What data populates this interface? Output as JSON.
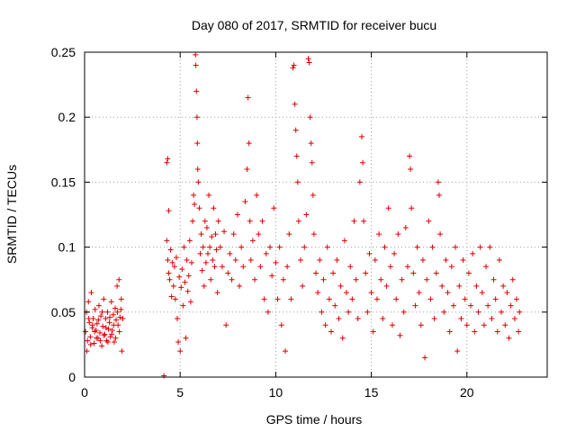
{
  "chart_data": {
    "type": "scatter",
    "title": "Day 080 of 2017, SRMTID for receiver bucu",
    "xlabel": "GPS time / hours",
    "ylabel": "SRMTID / TECUs",
    "xlim": [
      0,
      24.2
    ],
    "ylim": [
      0,
      0.25
    ],
    "x_ticks": [
      0,
      5,
      10,
      15,
      20
    ],
    "x_tick_labels": [
      "0",
      "5",
      "10",
      "15",
      "20"
    ],
    "y_ticks": [
      0,
      0.05,
      0.1,
      0.15,
      0.2,
      0.25
    ],
    "y_tick_labels": [
      "0",
      "0.05",
      "0.1",
      "0.15",
      "0.2",
      "0.25"
    ],
    "grid": true,
    "marker": "plus",
    "series": [
      {
        "name": "SRMTID",
        "color": "#e00000",
        "points": [
          [
            0.05,
            0.035
          ],
          [
            0.1,
            0.05
          ],
          [
            0.15,
            0.028
          ],
          [
            0.2,
            0.058
          ],
          [
            0.25,
            0.042
          ],
          [
            0.3,
            0.031
          ],
          [
            0.35,
            0.065
          ],
          [
            0.4,
            0.038
          ],
          [
            0.45,
            0.045
          ],
          [
            0.5,
            0.026
          ],
          [
            0.55,
            0.052
          ],
          [
            0.6,
            0.036
          ],
          [
            0.65,
            0.041
          ],
          [
            0.7,
            0.03
          ],
          [
            0.75,
            0.055
          ],
          [
            0.8,
            0.034
          ],
          [
            0.85,
            0.047
          ],
          [
            0.9,
            0.024
          ],
          [
            0.95,
            0.039
          ],
          [
            1.0,
            0.06
          ],
          [
            1.05,
            0.033
          ],
          [
            1.1,
            0.045
          ],
          [
            1.15,
            0.028
          ],
          [
            1.2,
            0.05
          ],
          [
            1.25,
            0.037
          ],
          [
            1.3,
            0.042
          ],
          [
            1.35,
            0.031
          ],
          [
            1.4,
            0.058
          ],
          [
            1.45,
            0.036
          ],
          [
            1.5,
            0.048
          ],
          [
            1.55,
            0.027
          ],
          [
            1.6,
            0.053
          ],
          [
            1.65,
            0.044
          ],
          [
            1.7,
            0.07
          ],
          [
            1.75,
            0.04
          ],
          [
            1.8,
            0.075
          ],
          [
            1.85,
            0.046
          ],
          [
            1.9,
            0.052
          ],
          [
            1.95,
            0.02
          ],
          [
            2.0,
            0.045
          ],
          [
            0.12,
            0.02
          ],
          [
            0.22,
            0.045
          ],
          [
            0.32,
            0.025
          ],
          [
            0.42,
            0.04
          ],
          [
            0.52,
            0.035
          ],
          [
            0.62,
            0.03
          ],
          [
            0.72,
            0.044
          ],
          [
            0.82,
            0.028
          ],
          [
            0.92,
            0.05
          ],
          [
            1.02,
            0.032
          ],
          [
            1.12,
            0.038
          ],
          [
            1.22,
            0.027
          ],
          [
            1.32,
            0.046
          ],
          [
            1.42,
            0.033
          ],
          [
            1.52,
            0.04
          ],
          [
            1.62,
            0.03
          ],
          [
            1.72,
            0.05
          ],
          [
            1.82,
            0.035
          ],
          [
            1.92,
            0.06
          ],
          [
            4.15,
            0.001
          ],
          [
            4.3,
            0.165
          ],
          [
            4.35,
            0.168
          ],
          [
            4.4,
            0.128
          ],
          [
            4.3,
            0.105
          ],
          [
            4.35,
            0.09
          ],
          [
            4.4,
            0.08
          ],
          [
            4.45,
            0.075
          ],
          [
            4.5,
            0.098
          ],
          [
            4.55,
            0.062
          ],
          [
            4.6,
            0.088
          ],
          [
            4.65,
            0.07
          ],
          [
            4.7,
            0.085
          ],
          [
            4.75,
            0.06
          ],
          [
            4.8,
            0.092
          ],
          [
            4.85,
            0.045
          ],
          [
            4.9,
            0.027
          ],
          [
            4.95,
            0.077
          ],
          [
            5.0,
            0.02
          ],
          [
            5.05,
            0.069
          ],
          [
            5.1,
            0.083
          ],
          [
            5.15,
            0.055
          ],
          [
            5.2,
            0.1
          ],
          [
            5.25,
            0.073
          ],
          [
            5.3,
            0.03
          ],
          [
            5.35,
            0.09
          ],
          [
            5.4,
            0.066
          ],
          [
            5.45,
            0.078
          ],
          [
            5.5,
            0.105
          ],
          [
            5.55,
            0.058
          ],
          [
            5.6,
            0.088
          ],
          [
            5.65,
            0.12
          ],
          [
            5.7,
            0.14
          ],
          [
            5.75,
            0.133
          ],
          [
            5.8,
            0.248
          ],
          [
            5.82,
            0.24
          ],
          [
            5.85,
            0.22
          ],
          [
            5.88,
            0.2
          ],
          [
            5.9,
            0.18
          ],
          [
            5.92,
            0.16
          ],
          [
            5.95,
            0.15
          ],
          [
            6.0,
            0.13
          ],
          [
            6.05,
            0.095
          ],
          [
            6.1,
            0.11
          ],
          [
            6.15,
            0.082
          ],
          [
            6.2,
            0.1
          ],
          [
            6.25,
            0.07
          ],
          [
            6.3,
            0.12
          ],
          [
            6.35,
            0.088
          ],
          [
            6.4,
            0.115
          ],
          [
            6.45,
            0.095
          ],
          [
            6.5,
            0.14
          ],
          [
            6.55,
            0.1
          ],
          [
            6.6,
            0.075
          ],
          [
            6.65,
            0.108
          ],
          [
            6.7,
            0.09
          ],
          [
            6.75,
            0.13
          ],
          [
            6.8,
            0.085
          ],
          [
            6.85,
            0.11
          ],
          [
            6.9,
            0.098
          ],
          [
            6.95,
            0.065
          ],
          [
            7.0,
            0.12
          ],
          [
            7.1,
            0.1
          ],
          [
            7.2,
            0.085
          ],
          [
            7.3,
            0.112
          ],
          [
            7.4,
            0.04
          ],
          [
            7.5,
            0.08
          ],
          [
            7.6,
            0.095
          ],
          [
            7.7,
            0.075
          ],
          [
            7.8,
            0.11
          ],
          [
            7.9,
            0.09
          ],
          [
            8.0,
            0.125
          ],
          [
            8.1,
            0.07
          ],
          [
            8.2,
            0.1
          ],
          [
            8.3,
            0.085
          ],
          [
            8.4,
            0.135
          ],
          [
            8.5,
            0.16
          ],
          [
            8.55,
            0.215
          ],
          [
            8.6,
            0.18
          ],
          [
            8.65,
            0.12
          ],
          [
            8.7,
            0.09
          ],
          [
            8.8,
            0.105
          ],
          [
            8.9,
            0.075
          ],
          [
            9.0,
            0.14
          ],
          [
            9.1,
            0.11
          ],
          [
            9.2,
            0.085
          ],
          [
            9.3,
            0.12
          ],
          [
            9.4,
            0.06
          ],
          [
            9.5,
            0.095
          ],
          [
            9.6,
            0.05
          ],
          [
            9.7,
            0.1
          ],
          [
            9.8,
            0.078
          ],
          [
            9.9,
            0.13
          ],
          [
            10.0,
            0.088
          ],
          [
            10.1,
            0.06
          ],
          [
            10.2,
            0.1
          ],
          [
            10.3,
            0.04
          ],
          [
            10.4,
            0.075
          ],
          [
            10.5,
            0.02
          ],
          [
            10.6,
            0.085
          ],
          [
            10.7,
            0.11
          ],
          [
            10.8,
            0.06
          ],
          [
            10.9,
            0.238
          ],
          [
            10.95,
            0.24
          ],
          [
            11.0,
            0.21
          ],
          [
            11.05,
            0.19
          ],
          [
            11.1,
            0.17
          ],
          [
            11.15,
            0.15
          ],
          [
            11.2,
            0.12
          ],
          [
            11.3,
            0.09
          ],
          [
            11.4,
            0.07
          ],
          [
            11.5,
            0.1
          ],
          [
            11.6,
            0.125
          ],
          [
            11.7,
            0.245
          ],
          [
            11.75,
            0.242
          ],
          [
            11.8,
            0.2
          ],
          [
            11.85,
            0.18
          ],
          [
            11.9,
            0.165
          ],
          [
            11.95,
            0.14
          ],
          [
            12.0,
            0.11
          ],
          [
            12.1,
            0.08
          ],
          [
            12.2,
            0.065
          ],
          [
            12.3,
            0.09
          ],
          [
            12.4,
            0.05
          ],
          [
            12.5,
            0.075
          ],
          [
            12.6,
            0.04
          ],
          [
            12.7,
            0.1
          ],
          [
            12.8,
            0.06
          ],
          [
            12.9,
            0.035
          ],
          [
            13.0,
            0.08
          ],
          [
            13.1,
            0.055
          ],
          [
            13.2,
            0.09
          ],
          [
            13.3,
            0.045
          ],
          [
            13.4,
            0.07
          ],
          [
            13.5,
            0.03
          ],
          [
            13.6,
            0.105
          ],
          [
            13.7,
            0.065
          ],
          [
            13.8,
            0.05
          ],
          [
            13.9,
            0.085
          ],
          [
            14.0,
            0.06
          ],
          [
            14.1,
            0.12
          ],
          [
            14.2,
            0.075
          ],
          [
            14.3,
            0.045
          ],
          [
            14.4,
            0.15
          ],
          [
            14.5,
            0.185
          ],
          [
            14.55,
            0.165
          ],
          [
            14.6,
            0.12
          ],
          [
            14.7,
            0.08
          ],
          [
            14.8,
            0.05
          ],
          [
            14.9,
            0.095
          ],
          [
            15.0,
            0.065
          ],
          [
            15.1,
            0.035
          ],
          [
            15.2,
            0.09
          ],
          [
            15.3,
            0.06
          ],
          [
            15.4,
            0.11
          ],
          [
            15.5,
            0.075
          ],
          [
            15.6,
            0.045
          ],
          [
            15.7,
            0.1
          ],
          [
            15.8,
            0.07
          ],
          [
            15.9,
            0.13
          ],
          [
            16.0,
            0.085
          ],
          [
            16.1,
            0.04
          ],
          [
            16.2,
            0.095
          ],
          [
            16.3,
            0.06
          ],
          [
            16.4,
            0.11
          ],
          [
            16.5,
            0.032
          ],
          [
            16.6,
            0.075
          ],
          [
            16.7,
            0.05
          ],
          [
            16.8,
            0.115
          ],
          [
            16.9,
            0.085
          ],
          [
            17.0,
            0.17
          ],
          [
            17.05,
            0.16
          ],
          [
            17.1,
            0.13
          ],
          [
            17.2,
            0.08
          ],
          [
            17.3,
            0.055
          ],
          [
            17.4,
            0.1
          ],
          [
            17.5,
            0.065
          ],
          [
            17.6,
            0.04
          ],
          [
            17.7,
            0.09
          ],
          [
            17.8,
            0.015
          ],
          [
            17.9,
            0.075
          ],
          [
            18.0,
            0.12
          ],
          [
            18.1,
            0.06
          ],
          [
            18.2,
            0.1
          ],
          [
            18.3,
            0.045
          ],
          [
            18.4,
            0.08
          ],
          [
            18.5,
            0.15
          ],
          [
            18.55,
            0.14
          ],
          [
            18.6,
            0.11
          ],
          [
            18.7,
            0.07
          ],
          [
            18.8,
            0.05
          ],
          [
            18.9,
            0.09
          ],
          [
            19.0,
            0.065
          ],
          [
            19.1,
            0.035
          ],
          [
            19.2,
            0.085
          ],
          [
            19.3,
            0.055
          ],
          [
            19.4,
            0.1
          ],
          [
            19.5,
            0.02
          ],
          [
            19.6,
            0.07
          ],
          [
            19.7,
            0.045
          ],
          [
            19.8,
            0.09
          ],
          [
            19.9,
            0.06
          ],
          [
            20.0,
            0.04
          ],
          [
            20.1,
            0.08
          ],
          [
            20.2,
            0.055
          ],
          [
            20.3,
            0.095
          ],
          [
            20.4,
            0.035
          ],
          [
            20.5,
            0.07
          ],
          [
            20.6,
            0.05
          ],
          [
            20.7,
            0.1
          ],
          [
            20.8,
            0.065
          ],
          [
            20.9,
            0.04
          ],
          [
            21.0,
            0.085
          ],
          [
            21.1,
            0.055
          ],
          [
            21.2,
            0.1
          ],
          [
            21.3,
            0.045
          ],
          [
            21.4,
            0.075
          ],
          [
            21.5,
            0.06
          ],
          [
            21.6,
            0.035
          ],
          [
            21.7,
            0.09
          ],
          [
            21.8,
            0.05
          ],
          [
            21.9,
            0.07
          ],
          [
            22.0,
            0.04
          ],
          [
            22.1,
            0.065
          ],
          [
            22.2,
            0.03
          ],
          [
            22.3,
            0.055
          ],
          [
            22.4,
            0.075
          ],
          [
            22.5,
            0.045
          ],
          [
            22.6,
            0.06
          ],
          [
            22.7,
            0.035
          ],
          [
            22.75,
            0.05
          ]
        ]
      }
    ]
  }
}
